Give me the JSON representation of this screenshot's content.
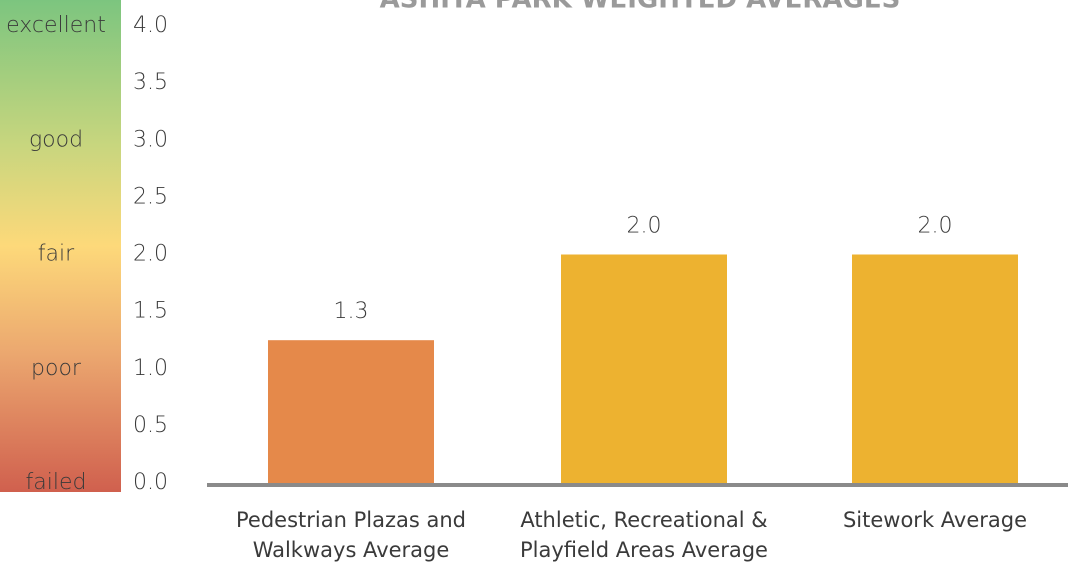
{
  "chart_data": {
    "type": "bar",
    "title": "ASHITA PARK WEIGHTED AVERAGES",
    "categories": [
      "Pedestrian Plazas and Walkways Average",
      "Athletic, Recreational & Playfield Areas Average",
      "Sitework Average"
    ],
    "values": [
      1.25,
      2.0,
      2.0
    ],
    "value_labels": [
      "1.3",
      "2.0",
      "2.0"
    ],
    "colors": [
      "#e5894a",
      "#edb230",
      "#edb230"
    ],
    "ylim": [
      0,
      4
    ],
    "yticks": [
      {
        "value": 0,
        "label": "0.0"
      },
      {
        "value": 0.5,
        "label": "0.5"
      },
      {
        "value": 1,
        "label": "1.0"
      },
      {
        "value": 1.5,
        "label": "1.5"
      },
      {
        "value": 2,
        "label": "2.0"
      },
      {
        "value": 2.5,
        "label": "2.5"
      },
      {
        "value": 3,
        "label": "3.0"
      },
      {
        "value": 3.5,
        "label": "3.5"
      },
      {
        "value": 4,
        "label": "4.0"
      }
    ],
    "rating_labels": [
      {
        "value": 4,
        "label": "excellent"
      },
      {
        "value": 3,
        "label": "good"
      },
      {
        "value": 2,
        "label": "fair"
      },
      {
        "value": 1,
        "label": "poor"
      },
      {
        "value": 0,
        "label": "failed"
      }
    ],
    "grid": false
  }
}
